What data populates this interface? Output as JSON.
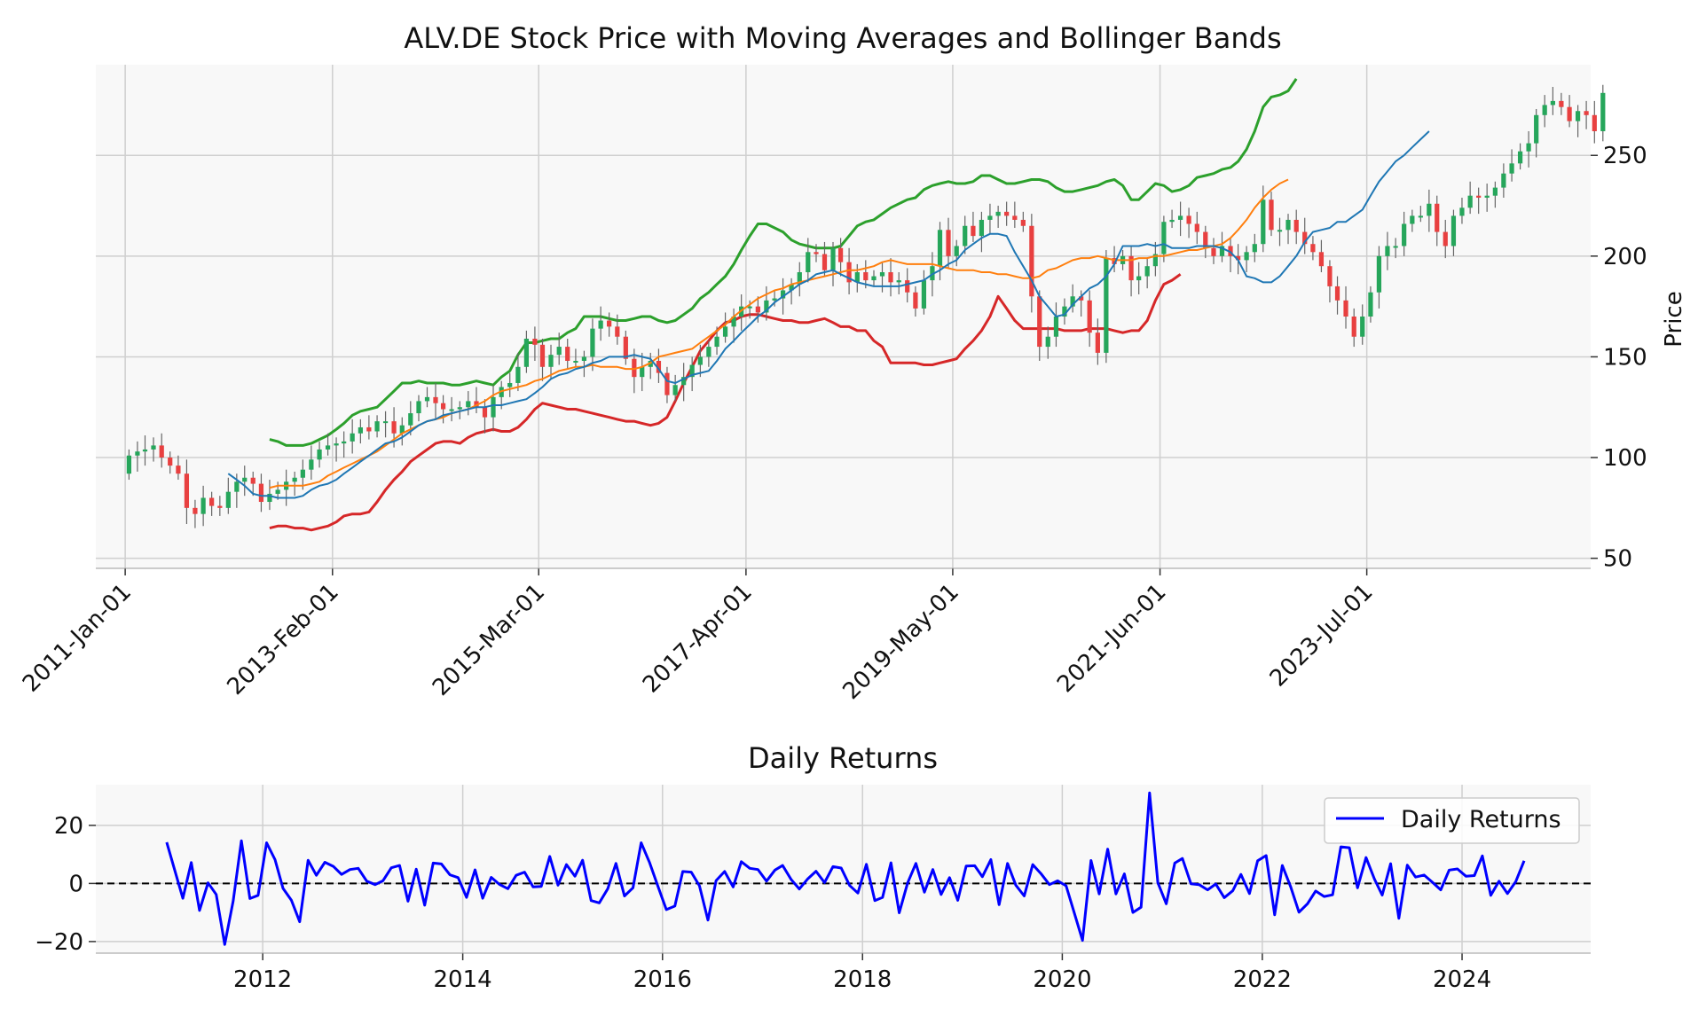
{
  "chart_data": [
    {
      "type": "candlestick",
      "title": "ALV.DE Stock Price with Moving Averages and Bollinger Bands",
      "ylabel": "Price",
      "xlabel": "",
      "xlim": [
        "2010-09-15",
        "2025-10-01"
      ],
      "ylim": [
        45,
        295
      ],
      "yticks": [
        50,
        100,
        150,
        200,
        250
      ],
      "xticks": [
        {
          "date": "2011-01-01",
          "label": "2011-Jan-01"
        },
        {
          "date": "2013-02-01",
          "label": "2013-Feb-01"
        },
        {
          "date": "2015-03-01",
          "label": "2015-Mar-01"
        },
        {
          "date": "2017-04-01",
          "label": "2017-Apr-01"
        },
        {
          "date": "2019-05-01",
          "label": "2019-May-01"
        },
        {
          "date": "2021-06-01",
          "label": "2021-Jun-01"
        },
        {
          "date": "2023-07-01",
          "label": "2023-Jul-01"
        }
      ],
      "grid": true,
      "colors": {
        "up": "#26a65b",
        "down": "#e84040",
        "sma_short": "#1f77b4",
        "sma_long": "#ff7f0e",
        "bb_upper": "#2ca02c",
        "bb_lower": "#d62728"
      },
      "candles_start": "2011-01-01",
      "candles_close": [
        101,
        103,
        104,
        106,
        100,
        96,
        92,
        75,
        72,
        80,
        76,
        75,
        83,
        88,
        90,
        87,
        78,
        82,
        84,
        88,
        90,
        94,
        99,
        104,
        106,
        107,
        108,
        112,
        115,
        113,
        118,
        118,
        112,
        116,
        122,
        128,
        130,
        127,
        124,
        124,
        125,
        128,
        125,
        120,
        130,
        135,
        137,
        145,
        159,
        156,
        145,
        151,
        155,
        148,
        148,
        150,
        164,
        168,
        165,
        160,
        149,
        140,
        145,
        148,
        142,
        131,
        136,
        140,
        146,
        150,
        155,
        160,
        165,
        170,
        175,
        175,
        172,
        178,
        179,
        183,
        186,
        192,
        202,
        201,
        193,
        204,
        197,
        187,
        192,
        188,
        190,
        192,
        187,
        188,
        182,
        174,
        188,
        195,
        213,
        200,
        205,
        215,
        210,
        218,
        220,
        222,
        220,
        218,
        215,
        180,
        155,
        160,
        170,
        175,
        180,
        178,
        162,
        152,
        199,
        196,
        200,
        188,
        190,
        195,
        201,
        217,
        218,
        220,
        216,
        212,
        204,
        200,
        205,
        200,
        198,
        202,
        206,
        228,
        213,
        213,
        218,
        212,
        206,
        202,
        195,
        185,
        178,
        170,
        160,
        170,
        182,
        200,
        205,
        205,
        216,
        220,
        220,
        226,
        212,
        205,
        220,
        224,
        230,
        229,
        230,
        234,
        241,
        246,
        252,
        256,
        270,
        275,
        277,
        274,
        267,
        272,
        270,
        262,
        281
      ],
      "sma_short": {
        "start": "2012-01-01",
        "values": [
          92,
          89,
          86,
          82,
          81,
          81,
          80,
          80,
          80,
          81,
          84,
          86,
          87,
          89,
          92,
          95,
          98,
          101,
          104,
          107,
          108,
          110,
          113,
          116,
          118,
          119,
          121,
          122,
          123,
          124,
          125,
          125,
          126,
          126,
          127,
          128,
          129,
          132,
          135,
          139,
          141,
          142,
          144,
          145,
          147,
          148,
          150,
          150,
          150,
          151,
          150,
          149,
          144,
          138,
          137,
          139,
          141,
          142,
          143,
          148,
          154,
          158,
          162,
          166,
          170,
          173,
          177,
          180,
          183,
          186,
          188,
          191,
          192,
          193,
          191,
          189,
          187,
          186,
          185,
          185,
          185,
          185,
          186,
          187,
          188,
          191,
          193,
          196,
          198,
          203,
          206,
          209,
          211,
          211,
          210,
          202,
          195,
          188,
          180,
          175,
          170,
          171,
          176,
          180,
          184,
          186,
          190,
          196,
          205,
          205,
          205,
          206,
          205,
          206,
          204,
          204,
          204,
          205,
          205,
          205,
          204,
          202,
          198,
          190,
          189,
          187,
          187,
          190,
          195,
          200,
          207,
          212,
          213,
          214,
          217,
          217,
          220,
          223,
          230,
          237,
          242,
          247,
          250,
          254,
          258,
          262
        ]
      },
      "sma_long": {
        "start": "2012-06-01",
        "values": [
          85,
          86,
          86,
          86,
          86,
          87,
          88,
          91,
          93,
          95,
          97,
          99,
          101,
          103,
          106,
          109,
          112,
          114,
          116,
          118,
          119,
          120,
          122,
          123,
          124,
          126,
          128,
          131,
          133,
          134,
          135,
          136,
          138,
          139,
          141,
          143,
          144,
          145,
          145,
          146,
          145,
          145,
          145,
          144,
          144,
          145,
          147,
          150,
          151,
          152,
          153,
          154,
          157,
          160,
          163,
          166,
          170,
          173,
          176,
          179,
          181,
          183,
          184,
          186,
          187,
          188,
          189,
          190,
          191,
          192,
          193,
          193,
          194,
          195,
          197,
          198,
          197,
          196,
          196,
          196,
          196,
          195,
          194,
          193,
          193,
          193,
          192,
          192,
          191,
          191,
          190,
          189,
          189,
          190,
          193,
          194,
          196,
          198,
          199,
          199,
          200,
          199,
          198,
          198,
          198,
          199,
          199,
          200,
          200,
          201,
          202,
          203,
          203,
          204,
          205,
          206,
          209,
          213,
          218,
          224,
          229,
          233,
          236,
          238
        ]
      },
      "bb_upper": {
        "start": "2012-06-01",
        "values": [
          109,
          108,
          106,
          106,
          106,
          107,
          109,
          111,
          114,
          117,
          121,
          123,
          124,
          125,
          129,
          133,
          137,
          137,
          138,
          137,
          137,
          137,
          136,
          136,
          137,
          138,
          137,
          136,
          140,
          143,
          151,
          157,
          157,
          158,
          159,
          159,
          162,
          164,
          170,
          170,
          170,
          169,
          168,
          168,
          169,
          170,
          170,
          168,
          167,
          168,
          171,
          174,
          179,
          182,
          186,
          190,
          196,
          203,
          210,
          216,
          216,
          214,
          212,
          208,
          206,
          205,
          204,
          204,
          204,
          205,
          210,
          215,
          217,
          218,
          221,
          224,
          226,
          228,
          229,
          233,
          235,
          236,
          237,
          236,
          236,
          237,
          240,
          240,
          238,
          236,
          236,
          237,
          238,
          238,
          237,
          234,
          232,
          232,
          233,
          234,
          235,
          237,
          238,
          235,
          228,
          228,
          232,
          236,
          235,
          232,
          233,
          235,
          239,
          240,
          241,
          243,
          244,
          247,
          253,
          262,
          274,
          279,
          280,
          282,
          288
        ]
      },
      "bb_lower": {
        "start": "2012-06-01",
        "values": [
          65,
          66,
          66,
          65,
          65,
          64,
          65,
          66,
          68,
          71,
          72,
          72,
          73,
          78,
          84,
          89,
          93,
          98,
          101,
          104,
          107,
          108,
          108,
          107,
          110,
          112,
          113,
          114,
          113,
          113,
          115,
          119,
          124,
          127,
          126,
          125,
          124,
          124,
          123,
          122,
          121,
          120,
          119,
          118,
          118,
          117,
          116,
          117,
          120,
          128,
          137,
          145,
          153,
          158,
          163,
          167,
          168,
          170,
          171,
          171,
          170,
          169,
          168,
          168,
          167,
          167,
          168,
          169,
          167,
          165,
          165,
          163,
          163,
          158,
          155,
          147,
          147,
          147,
          147,
          146,
          146,
          147,
          148,
          149,
          154,
          158,
          163,
          170,
          180,
          174,
          168,
          164,
          164,
          164,
          164,
          164,
          163,
          163,
          163,
          164,
          164,
          164,
          163,
          162,
          163,
          163,
          168,
          178,
          186,
          188,
          191
        ]
      }
    },
    {
      "type": "line",
      "title": "Daily Returns",
      "xlabel": "",
      "ylabel": "",
      "xlim": [
        "2010-05-01",
        "2025-04-15"
      ],
      "ylim": [
        -24,
        34
      ],
      "yticks": [
        -20,
        0,
        20
      ],
      "xticks": [
        "2012",
        "2014",
        "2016",
        "2018",
        "2020",
        "2022",
        "2024"
      ],
      "grid": true,
      "legend": "top-right",
      "reference_line": 0,
      "series": [
        {
          "name": "Daily Returns",
          "color": "#0000ff",
          "start": "2011-01-01",
          "step_months": 1,
          "values": [
            14.2,
            4.1,
            -5.1,
            7.2,
            -9.3,
            0.2,
            -3.8,
            -21.0,
            -6.1,
            14.7,
            -5.2,
            -4.1,
            14.0,
            8.2,
            -1.7,
            -5.8,
            -13.2,
            8.0,
            2.8,
            7.3,
            5.9,
            3.1,
            4.8,
            5.2,
            0.8,
            -0.4,
            0.9,
            5.4,
            6.2,
            -6.1,
            4.9,
            -7.5,
            7.0,
            6.7,
            3.0,
            2.0,
            -4.8,
            4.7,
            -5.1,
            2.1,
            -0.3,
            -1.8,
            2.8,
            3.9,
            -1.2,
            -1.0,
            9.3,
            -0.6,
            6.5,
            2.5,
            8.0,
            -5.9,
            -6.7,
            -1.8,
            6.9,
            -4.3,
            -1.5,
            14.0,
            7.1,
            -0.9,
            -9.0,
            -7.8,
            4.1,
            3.9,
            -0.8,
            -12.6,
            1.0,
            4.1,
            -1.2,
            7.5,
            5.2,
            4.8,
            0.8,
            4.6,
            6.2,
            1.4,
            -1.9,
            1.6,
            4.2,
            0.3,
            5.8,
            5.3,
            -0.7,
            -3.3,
            6.6,
            -5.9,
            -4.8,
            7.1,
            -10.1,
            0.2,
            6.9,
            -3.0,
            4.8,
            -3.8,
            2.0,
            -5.8,
            6.0,
            6.1,
            2.3,
            8.2,
            -7.3,
            6.9,
            -0.6,
            -4.3,
            6.5,
            3.4,
            -0.4,
            0.9,
            -0.8,
            -10.5,
            -19.6,
            7.9,
            -3.6,
            11.8,
            -3.6,
            3.3,
            -10.0,
            -8.2,
            31.2,
            0.3,
            -7.0,
            7.0,
            8.6,
            -0.1,
            -0.4,
            -2.2,
            -0.2,
            -4.9,
            -2.5,
            3.1,
            -3.5,
            7.8,
            9.6,
            -10.8,
            6.2,
            -1.3,
            -9.9,
            -7.0,
            -2.6,
            -4.5,
            -3.9,
            12.6,
            12.3,
            -1.5,
            8.9,
            1.5,
            -4.0,
            6.8,
            -12.0,
            6.3,
            2.2,
            2.9,
            0.4,
            -2.2,
            4.6,
            5.0,
            2.5,
            2.7,
            9.5,
            -4.1,
            0.8,
            -3.5,
            0.6,
            7.8
          ]
        }
      ]
    }
  ]
}
